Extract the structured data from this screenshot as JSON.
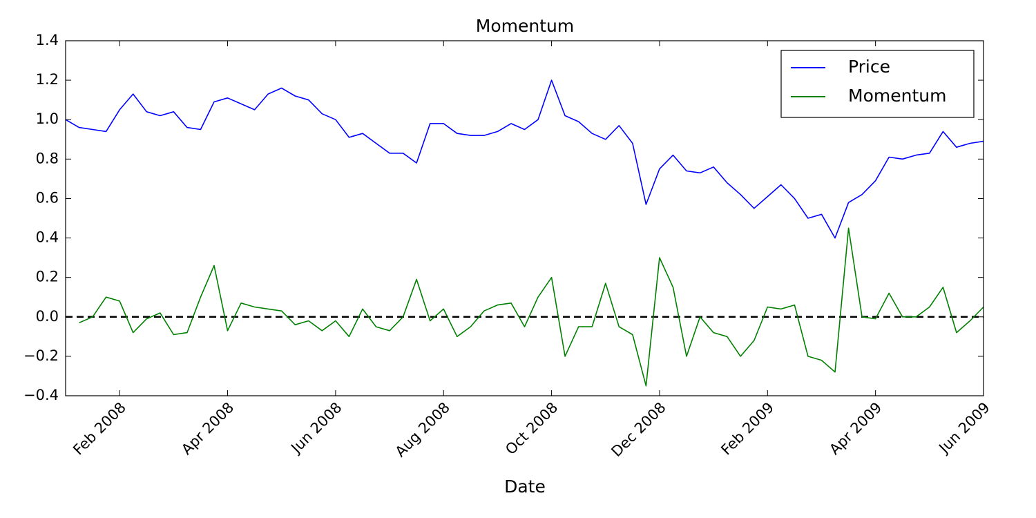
{
  "chart_data": {
    "type": "line",
    "title": "Momentum",
    "x_label": "Date",
    "categories": [
      null,
      null,
      null,
      null,
      "Feb 2008",
      null,
      null,
      null,
      null,
      null,
      null,
      null,
      "Apr 2008",
      null,
      null,
      null,
      null,
      null,
      null,
      null,
      "Jun 2008",
      null,
      null,
      null,
      null,
      null,
      null,
      null,
      "Aug 2008",
      null,
      null,
      null,
      null,
      null,
      null,
      null,
      "Oct 2008",
      null,
      null,
      null,
      null,
      null,
      null,
      null,
      "Dec 2008",
      null,
      null,
      null,
      null,
      null,
      null,
      null,
      "Feb 2009",
      null,
      null,
      null,
      null,
      null,
      null,
      null,
      "Apr 2009",
      null,
      null,
      null,
      null,
      null,
      null,
      null,
      "Jun 2009"
    ],
    "series": [
      {
        "name": "Price",
        "color": "#0000ff",
        "values": [
          1.0,
          0.96,
          0.95,
          0.94,
          1.05,
          1.13,
          1.04,
          1.02,
          1.04,
          0.96,
          0.95,
          1.09,
          1.11,
          1.08,
          1.05,
          1.13,
          1.16,
          1.12,
          1.1,
          1.03,
          1.0,
          0.91,
          0.93,
          0.88,
          0.83,
          0.83,
          0.78,
          0.98,
          0.98,
          0.93,
          0.92,
          0.92,
          0.94,
          0.98,
          0.95,
          1.0,
          1.2,
          1.02,
          0.99,
          0.93,
          0.9,
          0.97,
          0.88,
          0.57,
          0.75,
          0.82,
          0.74,
          0.73,
          0.76,
          0.68,
          0.62,
          0.55,
          0.61,
          0.67,
          0.6,
          0.5,
          0.52,
          0.4,
          0.58,
          0.62,
          0.69,
          0.81,
          0.8,
          0.82,
          0.83,
          0.94,
          0.86,
          0.88,
          0.89
        ]
      },
      {
        "name": "Momentum",
        "color": "#008000",
        "values": [
          null,
          -0.03,
          0.0,
          0.1,
          0.08,
          -0.08,
          -0.01,
          0.02,
          -0.09,
          -0.08,
          0.1,
          0.26,
          -0.07,
          0.07,
          0.05,
          0.04,
          0.03,
          -0.04,
          -0.02,
          -0.07,
          -0.02,
          -0.1,
          0.04,
          -0.05,
          -0.07,
          0.0,
          0.19,
          -0.02,
          0.04,
          -0.1,
          -0.05,
          0.03,
          0.06,
          0.07,
          -0.05,
          0.1,
          0.2,
          -0.2,
          -0.05,
          -0.05,
          0.17,
          -0.05,
          -0.09,
          -0.35,
          0.3,
          0.15,
          -0.2,
          0.0,
          -0.08,
          -0.1,
          -0.2,
          -0.12,
          0.05,
          0.04,
          0.06,
          -0.2,
          -0.22,
          -0.28,
          0.45,
          0.0,
          -0.01,
          0.12,
          0.0,
          0.0,
          0.05,
          0.15,
          -0.08,
          -0.02,
          0.05
        ]
      }
    ],
    "reference_line": 0,
    "ylim": [
      -0.4,
      1.4
    ],
    "yticks": [
      {
        "value": -0.4,
        "label": "−0.4"
      },
      {
        "value": -0.2,
        "label": "−0.2"
      },
      {
        "value": 0,
        "label": "0.0"
      },
      {
        "value": 0.2,
        "label": "0.2"
      },
      {
        "value": 0.4,
        "label": "0.4"
      },
      {
        "value": 0.6,
        "label": "0.6"
      },
      {
        "value": 0.8,
        "label": "0.8"
      },
      {
        "value": 1.0,
        "label": "1.0"
      },
      {
        "value": 1.2,
        "label": "1.2"
      },
      {
        "value": 1.4,
        "label": "1.4"
      }
    ],
    "legend": "upper right",
    "grid": false
  }
}
